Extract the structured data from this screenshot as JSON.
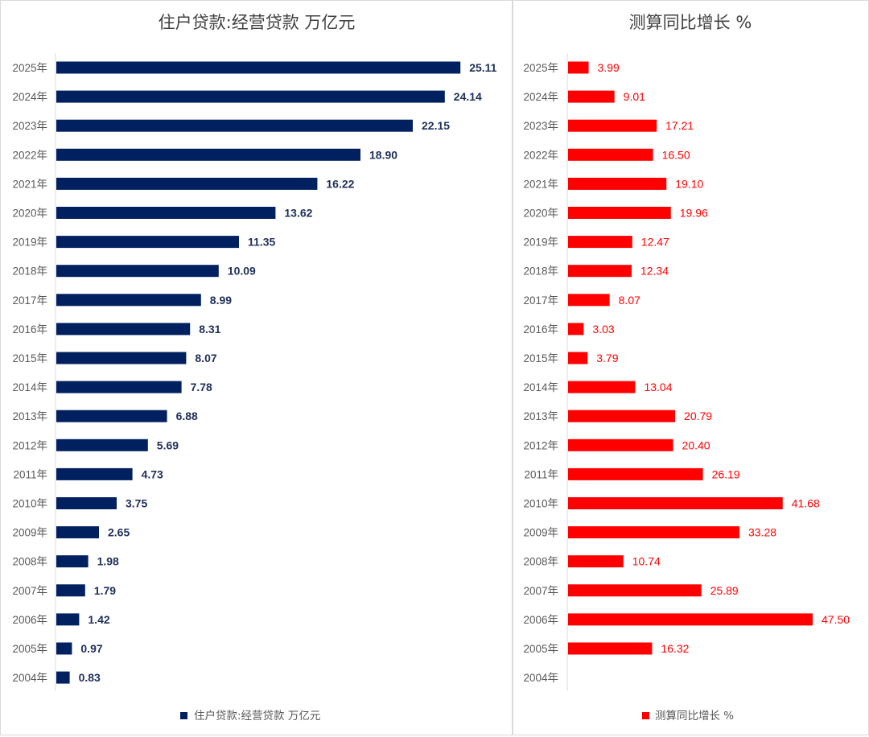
{
  "chart_data": [
    {
      "type": "bar",
      "orientation": "horizontal",
      "title": "住户贷款:经营贷款 万亿元",
      "categories": [
        "2025年",
        "2024年",
        "2023年",
        "2022年",
        "2021年",
        "2020年",
        "2019年",
        "2018年",
        "2017年",
        "2016年",
        "2015年",
        "2014年",
        "2013年",
        "2012年",
        "2011年",
        "2010年",
        "2009年",
        "2008年",
        "2007年",
        "2006年",
        "2005年",
        "2004年"
      ],
      "series": [
        {
          "name": "住户贷款:经营贷款 万亿元",
          "values": [
            25.11,
            24.14,
            22.15,
            18.9,
            16.22,
            13.62,
            11.35,
            10.09,
            8.99,
            8.31,
            8.07,
            7.78,
            6.88,
            5.69,
            4.73,
            3.75,
            2.65,
            1.98,
            1.79,
            1.42,
            0.97,
            0.83
          ],
          "labels": [
            "25.11",
            "24.14",
            "22.15",
            "18.90",
            "16.22",
            "13.62",
            "11.35",
            "10.09",
            "8.99",
            "8.31",
            "8.07",
            "7.78",
            "6.88",
            "5.69",
            "4.73",
            "3.75",
            "2.65",
            "1.98",
            "1.79",
            "1.42",
            "0.97",
            "0.83"
          ],
          "color": "#002060"
        }
      ],
      "xlim": [
        0,
        27
      ],
      "grid": false,
      "legend": "bottom"
    },
    {
      "type": "bar",
      "orientation": "horizontal",
      "title": "测算同比增长 %",
      "categories": [
        "2025年",
        "2024年",
        "2023年",
        "2022年",
        "2021年",
        "2020年",
        "2019年",
        "2018年",
        "2017年",
        "2016年",
        "2015年",
        "2014年",
        "2013年",
        "2012年",
        "2011年",
        "2010年",
        "2009年",
        "2008年",
        "2007年",
        "2006年",
        "2005年",
        "2004年"
      ],
      "series": [
        {
          "name": "测算同比增长 %",
          "values": [
            3.99,
            9.01,
            17.21,
            16.5,
            19.1,
            19.96,
            12.47,
            12.34,
            8.07,
            3.03,
            3.79,
            13.04,
            20.79,
            20.4,
            26.19,
            41.68,
            33.28,
            10.74,
            25.89,
            47.5,
            16.32,
            null
          ],
          "labels": [
            "3.99",
            "9.01",
            "17.21",
            "16.50",
            "19.10",
            "19.96",
            "12.47",
            "12.34",
            "8.07",
            "3.03",
            "3.79",
            "13.04",
            "20.79",
            "20.40",
            "26.19",
            "41.68",
            "33.28",
            "10.74",
            "25.89",
            "47.50",
            "16.32",
            ""
          ],
          "color": "#ff0000"
        }
      ],
      "xlim": [
        0,
        50
      ],
      "grid": false,
      "legend": "bottom"
    }
  ]
}
